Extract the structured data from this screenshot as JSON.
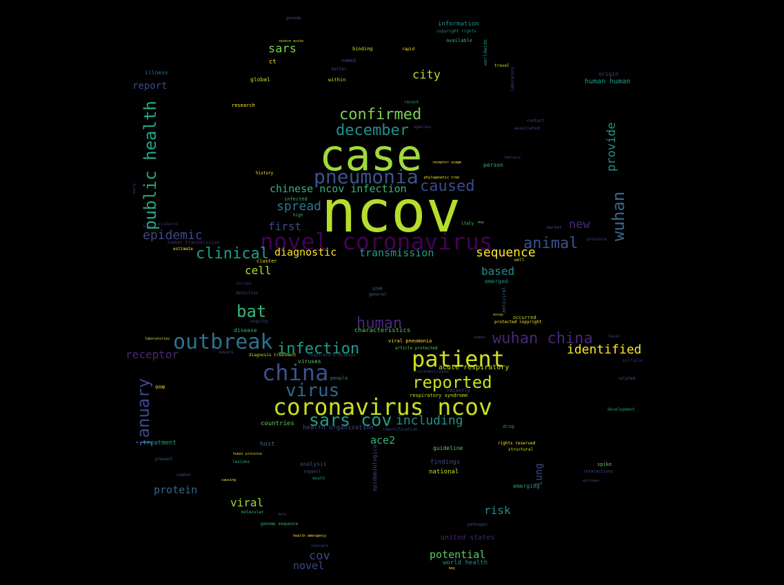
{
  "words": [
    {
      "text": "ncov",
      "color": "#b5de2b"
    },
    {
      "text": "case",
      "color": "#a0da39"
    },
    {
      "text": "novel coronavirus",
      "color": "#440154"
    },
    {
      "text": "coronavirus ncov",
      "color": "#c8e020"
    },
    {
      "text": "pneumonia",
      "color": "#3b528b"
    },
    {
      "text": "patient",
      "color": "#d0e11c"
    },
    {
      "text": "china",
      "color": "#3b528b"
    },
    {
      "text": "outbreak",
      "color": "#2c728e"
    },
    {
      "text": "public health",
      "color": "#22a884"
    },
    {
      "text": "confirmed",
      "color": "#7ad151"
    },
    {
      "text": "december",
      "color": "#21918c"
    },
    {
      "text": "wuhan china",
      "color": "#482878"
    },
    {
      "text": "sars cov",
      "color": "#1f9e89"
    },
    {
      "text": "virus",
      "color": "#31688e"
    },
    {
      "text": "reported",
      "color": "#c8e020"
    },
    {
      "text": "infection",
      "color": "#1f9e89"
    },
    {
      "text": "wuhan",
      "color": "#31688e"
    },
    {
      "text": "january",
      "color": "#3e4989"
    },
    {
      "text": "caused",
      "color": "#3e4989"
    },
    {
      "text": "animal",
      "color": "#3b528b"
    },
    {
      "text": "human",
      "color": "#482878"
    },
    {
      "text": "bat",
      "color": "#35b779"
    },
    {
      "text": "chinese ncov infection",
      "color": "#35b779"
    },
    {
      "text": "clinical",
      "color": "#1f9e89"
    },
    {
      "text": "sequence",
      "color": "#fde725"
    },
    {
      "text": "identified",
      "color": "#fde725"
    },
    {
      "text": "epidemic",
      "color": "#3e4989"
    },
    {
      "text": "spread",
      "color": "#2a788e"
    },
    {
      "text": "including",
      "color": "#21918c"
    },
    {
      "text": "transmission",
      "color": "#1f9e89"
    },
    {
      "text": "provide",
      "color": "#21918c"
    },
    {
      "text": "sars",
      "color": "#7ad151"
    },
    {
      "text": "city",
      "color": "#b5de2b"
    },
    {
      "text": "first",
      "color": "#3e4989"
    },
    {
      "text": "new",
      "color": "#482878"
    },
    {
      "text": "diagnostic",
      "color": "#fde725"
    },
    {
      "text": "receptor",
      "color": "#482878"
    },
    {
      "text": "cell",
      "color": "#b5de2b"
    },
    {
      "text": "based",
      "color": "#21918c"
    },
    {
      "text": "risk",
      "color": "#21918c"
    },
    {
      "text": "viral",
      "color": "#a0da39"
    },
    {
      "text": "protein",
      "color": "#31688e"
    },
    {
      "text": "potential",
      "color": "#5ec962"
    },
    {
      "text": "cov",
      "color": "#3e4989"
    },
    {
      "text": "novel",
      "color": "#3e4989"
    },
    {
      "text": "ace2",
      "color": "#35b779"
    },
    {
      "text": "lung",
      "color": "#3e4989"
    },
    {
      "text": "report",
      "color": "#3e4989"
    },
    {
      "text": "acute respiratory",
      "color": "#c8e020"
    },
    {
      "text": "united states",
      "color": "#482878"
    },
    {
      "text": "health organization",
      "color": "#3e4989"
    },
    {
      "text": "host",
      "color": "#31688e"
    },
    {
      "text": "characteristics",
      "color": "#5ec962"
    },
    {
      "text": "human human",
      "color": "#1f9e89"
    },
    {
      "text": "treatment",
      "color": "#1f9e89"
    },
    {
      "text": "countries",
      "color": "#5ec962"
    },
    {
      "text": "findings",
      "color": "#3e4989"
    },
    {
      "text": "analysis",
      "color": "#3e4989"
    },
    {
      "text": "national",
      "color": "#c8e020"
    },
    {
      "text": "guideline",
      "color": "#5ec962"
    },
    {
      "text": "world health",
      "color": "#21918c"
    },
    {
      "text": "viruses",
      "color": "#5ec962"
    },
    {
      "text": "information",
      "color": "#21918c"
    },
    {
      "text": "global",
      "color": "#c8e020"
    },
    {
      "text": "illness",
      "color": "#31688e"
    },
    {
      "text": "disease",
      "color": "#35b779"
    },
    {
      "text": "person",
      "color": "#35b779"
    },
    {
      "text": "emerged",
      "color": "#21918c"
    },
    {
      "text": "people",
      "color": "#21918c"
    },
    {
      "text": "respiratory syndrome",
      "color": "#c8e020"
    },
    {
      "text": "one",
      "color": "#fde725"
    },
    {
      "text": "emerging",
      "color": "#1f9e89"
    },
    {
      "text": "ct",
      "color": "#fde725"
    },
    {
      "text": "epidemiological",
      "color": "#3e4989"
    },
    {
      "text": "within",
      "color": "#c8e020"
    },
    {
      "text": "infected",
      "color": "#35b779"
    },
    {
      "text": "use",
      "color": "#31688e"
    },
    {
      "text": "death",
      "color": "#21918c"
    },
    {
      "text": "spike",
      "color": "#5ec962"
    },
    {
      "text": "origin",
      "color": "#3e4989"
    },
    {
      "text": "binding",
      "color": "#c8e020"
    },
    {
      "text": "rapid",
      "color": "#fde725"
    },
    {
      "text": "worldwide",
      "color": "#21918c"
    },
    {
      "text": "copyright rights",
      "color": "#21918c"
    },
    {
      "text": "available",
      "color": "#35b779"
    },
    {
      "text": "estimate",
      "color": "#fde725"
    },
    {
      "text": "research",
      "color": "#fde725"
    },
    {
      "text": "cluster",
      "color": "#fde725"
    },
    {
      "text": "viral pneumonia",
      "color": "#fde725"
    },
    {
      "text": "protected copyright",
      "color": "#fde725"
    },
    {
      "text": "occurred",
      "color": "#b5de2b"
    },
    {
      "text": "drug",
      "color": "#21918c"
    },
    {
      "text": "structural",
      "color": "#c8e020"
    },
    {
      "text": "rights reserved",
      "color": "#fde725"
    },
    {
      "text": "pathogen",
      "color": "#3e4989"
    },
    {
      "text": "genome sequence",
      "color": "#35b779"
    },
    {
      "text": "molecular",
      "color": "#35b779"
    },
    {
      "text": "present",
      "color": "#31688e"
    },
    {
      "text": "lesions",
      "color": "#35b779"
    },
    {
      "text": "suggest",
      "color": "#3e4989"
    },
    {
      "text": "article protected",
      "color": "#5ec962"
    },
    {
      "text": "development",
      "color": "#1f9e89"
    },
    {
      "text": "related",
      "color": "#3b528b"
    },
    {
      "text": "multiple",
      "color": "#482878"
    },
    {
      "text": "level",
      "color": "#3e4989"
    },
    {
      "text": "province",
      "color": "#3e4989"
    },
    {
      "text": "market",
      "color": "#3e4989"
    },
    {
      "text": "contact",
      "color": "#3e4989"
    },
    {
      "text": "associated",
      "color": "#3e4989"
    },
    {
      "text": "february",
      "color": "#3e4989"
    },
    {
      "text": "laboratory",
      "color": "#3e4989"
    },
    {
      "text": "travel",
      "color": "#c8e020"
    },
    {
      "text": "named",
      "color": "#3e4989"
    },
    {
      "text": "better",
      "color": "#3e4989"
    },
    {
      "text": "recent",
      "color": "#1f9e89"
    },
    {
      "text": "species",
      "color": "#3e4989"
    },
    {
      "text": "history",
      "color": "#fde725"
    },
    {
      "text": "high",
      "color": "#35b779"
    },
    {
      "text": "early",
      "color": "#3e4989"
    },
    {
      "text": "local",
      "color": "#3e4989"
    },
    {
      "text": "evidence",
      "color": "#482878"
    },
    {
      "text": "human transmission",
      "color": "#482878"
    },
    {
      "text": "europe",
      "color": "#482878"
    },
    {
      "text": "detection",
      "color": "#3e4989"
    },
    {
      "text": "ongoing",
      "color": "#3e4989"
    },
    {
      "text": "severe",
      "color": "#3e4989"
    },
    {
      "text": "diagnosis treatment",
      "color": "#c8e020"
    },
    {
      "text": "respiratory disease",
      "color": "#3e4989"
    },
    {
      "text": "recently",
      "color": "#3e4989"
    },
    {
      "text": "coronaviruses",
      "color": "#3e4989"
    },
    {
      "text": "identification",
      "color": "#3e4989"
    },
    {
      "text": "genome",
      "color": "#3e4989"
    },
    {
      "text": "severe acute",
      "color": "#c8e020"
    },
    {
      "text": "phylogenetic tree",
      "color": "#fde725"
    },
    {
      "text": "receptor usage",
      "color": "#fde725"
    },
    {
      "text": "italy",
      "color": "#5ec962"
    },
    {
      "text": "may",
      "color": "#5ec962"
    },
    {
      "text": "well",
      "color": "#c8e020"
    },
    {
      "text": "general",
      "color": "#31688e"
    },
    {
      "text": "assay",
      "color": "#c8e020"
    },
    {
      "text": "number",
      "color": "#3e4989"
    },
    {
      "text": "causing",
      "color": "#fde725"
    },
    {
      "text": "common",
      "color": "#3e4989"
    },
    {
      "text": "data",
      "color": "#3e4989"
    },
    {
      "text": "concern",
      "color": "#3e4989"
    },
    {
      "text": "key",
      "color": "#fde725"
    },
    {
      "text": "interactions",
      "color": "#3e4989"
    },
    {
      "text": "epitopes",
      "color": "#3e4989"
    },
    {
      "text": "hubei province",
      "color": "#c8e020"
    },
    {
      "text": "health emergency",
      "color": "#fde725"
    },
    {
      "text": "laboratories",
      "color": "#c8e020"
    },
    {
      "text": "antiviral",
      "color": "#31688e"
    }
  ]
}
